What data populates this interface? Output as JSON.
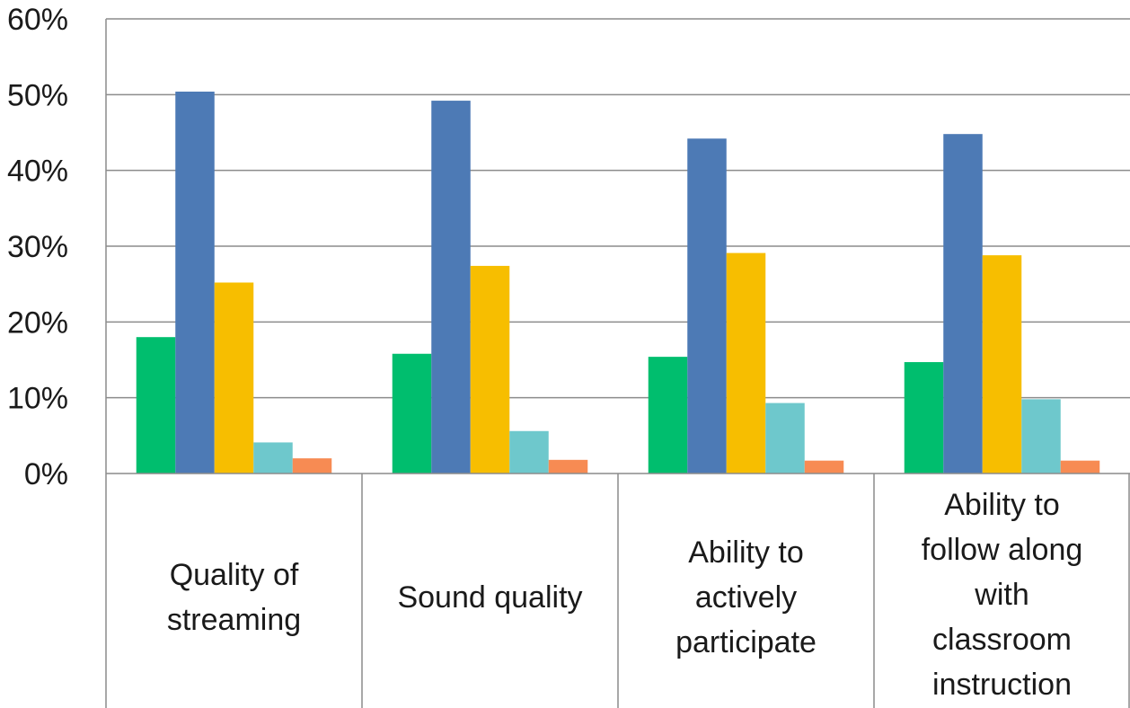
{
  "chart_data": {
    "type": "bar",
    "title": "",
    "xlabel": "",
    "ylabel": "",
    "ylim": [
      0,
      60
    ],
    "y_ticks": [
      "0%",
      "10%",
      "20%",
      "30%",
      "40%",
      "50%",
      "60%"
    ],
    "grid": true,
    "legend": "none",
    "categories": [
      [
        "Quality of",
        "streaming"
      ],
      [
        "Sound quality"
      ],
      [
        "Ability to",
        "actively",
        "participate"
      ],
      [
        "Ability to",
        "follow along",
        "with",
        "classroom",
        "instruction"
      ]
    ],
    "series": [
      {
        "color": "#00be6e",
        "values": [
          18.0,
          15.8,
          15.4,
          14.7
        ]
      },
      {
        "color": "#4d7ab5",
        "values": [
          50.4,
          49.2,
          44.2,
          44.8
        ]
      },
      {
        "color": "#f7be00",
        "values": [
          25.2,
          27.4,
          29.1,
          28.8
        ]
      },
      {
        "color": "#6ec8cc",
        "values": [
          4.1,
          5.6,
          9.3,
          9.8
        ]
      },
      {
        "color": "#f78b53",
        "values": [
          2.0,
          1.8,
          1.7,
          1.7
        ]
      }
    ]
  },
  "colors": {
    "grid": "#8c8c8c",
    "axis": "#8c8c8c",
    "text": "#1a1a1a"
  }
}
